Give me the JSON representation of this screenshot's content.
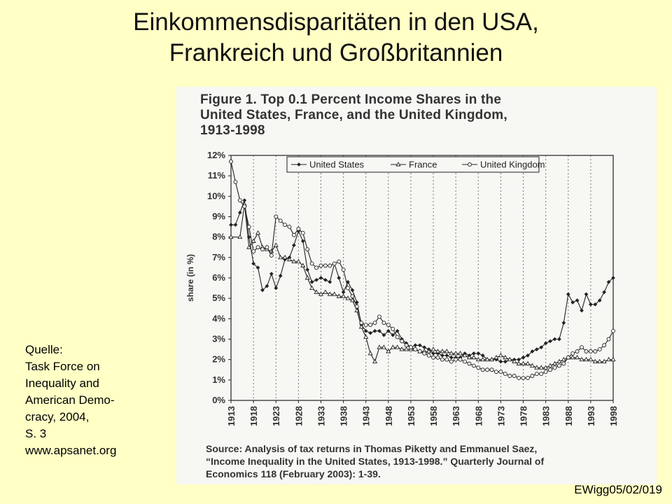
{
  "slide": {
    "title_line1": "Einkommensdisparitäten in den USA,",
    "title_line2": "Frankreich und Großbritannien",
    "source_lines": [
      "Quelle:",
      "Task Force on",
      "Inequality and",
      "American Demo-",
      "cracy, 2004,",
      "S. 3",
      "www.apsanet.org"
    ],
    "code": "EWigg05/02/019"
  },
  "figure": {
    "title_lines": [
      "Figure 1. Top 0.1 Percent Income Shares in the",
      "United States, France, and the United Kingdom,",
      "1913-1998"
    ],
    "source_lines": [
      "Source: Analysis of tax returns in Thomas Piketty and Emmanuel Saez,",
      "“Income Inequality in the United States, 1913-1998.” Quarterly Journal of",
      "Economics 118 (February 2003): 1-39."
    ]
  },
  "chart_data": {
    "type": "line",
    "title": "Figure 1. Top 0.1 Percent Income Shares in the United States, France, and the United Kingdom, 1913-1998",
    "xlabel": "",
    "ylabel": "share (in %)",
    "xlim": [
      1913,
      1998
    ],
    "ylim": [
      0,
      12
    ],
    "x_ticks": [
      1913,
      1918,
      1923,
      1928,
      1933,
      1938,
      1943,
      1948,
      1953,
      1958,
      1963,
      1968,
      1973,
      1978,
      1983,
      1988,
      1993,
      1998
    ],
    "y_ticks": [
      "0%",
      "1%",
      "2%",
      "3%",
      "4%",
      "5%",
      "6%",
      "7%",
      "8%",
      "9%",
      "10%",
      "11%",
      "12%"
    ],
    "grid": "vertical dashed",
    "legend_position": "top",
    "colors": {
      "line": "#222222"
    },
    "series": [
      {
        "name": "United States",
        "marker": "filled-diamond",
        "points": [
          [
            1913,
            8.6
          ],
          [
            1914,
            8.6
          ],
          [
            1915,
            9.2
          ],
          [
            1916,
            9.8
          ],
          [
            1917,
            8.0
          ],
          [
            1918,
            6.7
          ],
          [
            1919,
            6.5
          ],
          [
            1920,
            5.4
          ],
          [
            1921,
            5.6
          ],
          [
            1922,
            6.2
          ],
          [
            1923,
            5.5
          ],
          [
            1924,
            6.1
          ],
          [
            1925,
            6.9
          ],
          [
            1926,
            7.0
          ],
          [
            1927,
            7.6
          ],
          [
            1928,
            8.3
          ],
          [
            1929,
            7.8
          ],
          [
            1930,
            6.4
          ],
          [
            1931,
            5.8
          ],
          [
            1932,
            5.9
          ],
          [
            1933,
            6.0
          ],
          [
            1934,
            5.9
          ],
          [
            1935,
            5.8
          ],
          [
            1936,
            6.7
          ],
          [
            1937,
            6.0
          ],
          [
            1938,
            5.3
          ],
          [
            1939,
            5.8
          ],
          [
            1940,
            5.4
          ],
          [
            1941,
            4.8
          ],
          [
            1942,
            3.7
          ],
          [
            1943,
            3.4
          ],
          [
            1944,
            3.3
          ],
          [
            1945,
            3.4
          ],
          [
            1946,
            3.4
          ],
          [
            1947,
            3.2
          ],
          [
            1948,
            3.4
          ],
          [
            1949,
            3.2
          ],
          [
            1950,
            3.4
          ],
          [
            1951,
            3.0
          ],
          [
            1952,
            2.8
          ],
          [
            1953,
            2.6
          ],
          [
            1954,
            2.7
          ],
          [
            1955,
            2.7
          ],
          [
            1956,
            2.6
          ],
          [
            1957,
            2.5
          ],
          [
            1958,
            2.3
          ],
          [
            1959,
            2.3
          ],
          [
            1960,
            2.2
          ],
          [
            1961,
            2.2
          ],
          [
            1962,
            2.1
          ],
          [
            1963,
            2.1
          ],
          [
            1964,
            2.1
          ],
          [
            1965,
            2.3
          ],
          [
            1966,
            2.2
          ],
          [
            1967,
            2.3
          ],
          [
            1968,
            2.3
          ],
          [
            1969,
            2.2
          ],
          [
            1970,
            2.0
          ],
          [
            1971,
            2.0
          ],
          [
            1972,
            2.0
          ],
          [
            1973,
            1.9
          ],
          [
            1974,
            1.9
          ],
          [
            1975,
            2.0
          ],
          [
            1976,
            2.0
          ],
          [
            1977,
            2.0
          ],
          [
            1978,
            2.1
          ],
          [
            1979,
            2.2
          ],
          [
            1980,
            2.4
          ],
          [
            1981,
            2.5
          ],
          [
            1982,
            2.6
          ],
          [
            1983,
            2.8
          ],
          [
            1984,
            2.9
          ],
          [
            1985,
            3.0
          ],
          [
            1986,
            3.0
          ],
          [
            1987,
            3.8
          ],
          [
            1988,
            5.2
          ],
          [
            1989,
            4.8
          ],
          [
            1990,
            4.9
          ],
          [
            1991,
            4.4
          ],
          [
            1992,
            5.2
          ],
          [
            1993,
            4.7
          ],
          [
            1994,
            4.7
          ],
          [
            1995,
            4.9
          ],
          [
            1996,
            5.3
          ],
          [
            1997,
            5.8
          ],
          [
            1998,
            6.0
          ]
        ]
      },
      {
        "name": "France",
        "marker": "open-triangle",
        "points": [
          [
            1913,
            8.0
          ],
          [
            1915,
            8.0
          ],
          [
            1916,
            9.6
          ],
          [
            1917,
            7.5
          ],
          [
            1918,
            7.8
          ],
          [
            1919,
            8.2
          ],
          [
            1920,
            7.5
          ],
          [
            1921,
            7.4
          ],
          [
            1922,
            7.3
          ],
          [
            1923,
            7.6
          ],
          [
            1924,
            7.0
          ],
          [
            1925,
            7.0
          ],
          [
            1926,
            6.9
          ],
          [
            1927,
            6.8
          ],
          [
            1928,
            6.8
          ],
          [
            1929,
            6.6
          ],
          [
            1930,
            6.0
          ],
          [
            1931,
            5.5
          ],
          [
            1932,
            5.3
          ],
          [
            1933,
            5.2
          ],
          [
            1934,
            5.3
          ],
          [
            1935,
            5.2
          ],
          [
            1936,
            5.2
          ],
          [
            1937,
            5.1
          ],
          [
            1938,
            5.1
          ],
          [
            1939,
            5.0
          ],
          [
            1940,
            4.9
          ],
          [
            1941,
            4.4
          ],
          [
            1942,
            3.6
          ],
          [
            1943,
            3.1
          ],
          [
            1944,
            2.3
          ],
          [
            1945,
            1.9
          ],
          [
            1946,
            2.6
          ],
          [
            1947,
            2.6
          ],
          [
            1948,
            2.4
          ],
          [
            1949,
            2.6
          ],
          [
            1950,
            2.6
          ],
          [
            1951,
            2.5
          ],
          [
            1952,
            2.5
          ],
          [
            1953,
            2.5
          ],
          [
            1954,
            2.5
          ],
          [
            1955,
            2.4
          ],
          [
            1956,
            2.4
          ],
          [
            1957,
            2.4
          ],
          [
            1958,
            2.5
          ],
          [
            1959,
            2.4
          ],
          [
            1960,
            2.4
          ],
          [
            1961,
            2.4
          ],
          [
            1962,
            2.3
          ],
          [
            1963,
            2.3
          ],
          [
            1964,
            2.3
          ],
          [
            1965,
            2.2
          ],
          [
            1966,
            2.1
          ],
          [
            1967,
            2.1
          ],
          [
            1968,
            2.0
          ],
          [
            1969,
            2.0
          ],
          [
            1970,
            2.0
          ],
          [
            1971,
            2.0
          ],
          [
            1972,
            2.1
          ],
          [
            1973,
            2.2
          ],
          [
            1974,
            2.1
          ],
          [
            1975,
            2.0
          ],
          [
            1976,
            1.9
          ],
          [
            1977,
            1.8
          ],
          [
            1978,
            1.8
          ],
          [
            1979,
            1.8
          ],
          [
            1980,
            1.7
          ],
          [
            1981,
            1.6
          ],
          [
            1982,
            1.6
          ],
          [
            1983,
            1.6
          ],
          [
            1984,
            1.7
          ],
          [
            1985,
            1.8
          ],
          [
            1986,
            1.9
          ],
          [
            1987,
            2.0
          ],
          [
            1988,
            2.1
          ],
          [
            1989,
            2.1
          ],
          [
            1990,
            2.1
          ],
          [
            1991,
            2.0
          ],
          [
            1992,
            2.0
          ],
          [
            1993,
            2.0
          ],
          [
            1994,
            1.9
          ],
          [
            1995,
            1.9
          ],
          [
            1996,
            1.9
          ],
          [
            1997,
            2.0
          ],
          [
            1998,
            2.0
          ]
        ]
      },
      {
        "name": "United Kingdom",
        "marker": "open-circle",
        "points": [
          [
            1913,
            11.7
          ],
          [
            1914,
            10.7
          ],
          [
            1915,
            9.8
          ],
          [
            1916,
            9.5
          ],
          [
            1917,
            8.5
          ],
          [
            1918,
            7.3
          ],
          [
            1919,
            7.5
          ],
          [
            1920,
            7.4
          ],
          [
            1921,
            7.5
          ],
          [
            1922,
            7.1
          ],
          [
            1923,
            9.0
          ],
          [
            1924,
            8.8
          ],
          [
            1925,
            8.6
          ],
          [
            1926,
            8.5
          ],
          [
            1927,
            8.1
          ],
          [
            1928,
            8.4
          ],
          [
            1929,
            8.2
          ],
          [
            1930,
            7.4
          ],
          [
            1931,
            6.7
          ],
          [
            1932,
            6.5
          ],
          [
            1933,
            6.6
          ],
          [
            1934,
            6.6
          ],
          [
            1935,
            6.6
          ],
          [
            1936,
            6.7
          ],
          [
            1937,
            6.8
          ],
          [
            1938,
            6.4
          ],
          [
            1939,
            5.5
          ],
          [
            1940,
            5.1
          ],
          [
            1941,
            4.6
          ],
          [
            1942,
            3.8
          ],
          [
            1943,
            3.7
          ],
          [
            1944,
            3.7
          ],
          [
            1945,
            3.8
          ],
          [
            1946,
            4.1
          ],
          [
            1947,
            3.8
          ],
          [
            1948,
            3.7
          ],
          [
            1949,
            3.5
          ],
          [
            1950,
            3.1
          ],
          [
            1951,
            2.9
          ],
          [
            1952,
            2.7
          ],
          [
            1953,
            2.6
          ],
          [
            1954,
            2.5
          ],
          [
            1955,
            2.4
          ],
          [
            1956,
            2.3
          ],
          [
            1957,
            2.2
          ],
          [
            1958,
            2.1
          ],
          [
            1959,
            2.1
          ],
          [
            1960,
            2.0
          ],
          [
            1961,
            2.0
          ],
          [
            1962,
            1.9
          ],
          [
            1963,
            2.0
          ],
          [
            1964,
            2.0
          ],
          [
            1965,
            1.9
          ],
          [
            1966,
            1.8
          ],
          [
            1967,
            1.7
          ],
          [
            1968,
            1.6
          ],
          [
            1969,
            1.5
          ],
          [
            1970,
            1.5
          ],
          [
            1971,
            1.5
          ],
          [
            1972,
            1.4
          ],
          [
            1973,
            1.4
          ],
          [
            1974,
            1.3
          ],
          [
            1975,
            1.2
          ],
          [
            1976,
            1.2
          ],
          [
            1977,
            1.1
          ],
          [
            1978,
            1.1
          ],
          [
            1979,
            1.1
          ],
          [
            1980,
            1.2
          ],
          [
            1981,
            1.3
          ],
          [
            1982,
            1.3
          ],
          [
            1983,
            1.4
          ],
          [
            1984,
            1.5
          ],
          [
            1985,
            1.6
          ],
          [
            1986,
            1.7
          ],
          [
            1987,
            1.8
          ],
          [
            1988,
            2.1
          ],
          [
            1989,
            2.3
          ],
          [
            1990,
            2.4
          ],
          [
            1991,
            2.6
          ],
          [
            1992,
            2.4
          ],
          [
            1993,
            2.4
          ],
          [
            1994,
            2.4
          ],
          [
            1995,
            2.5
          ],
          [
            1996,
            2.7
          ],
          [
            1997,
            3.0
          ],
          [
            1998,
            3.4
          ]
        ]
      }
    ]
  }
}
